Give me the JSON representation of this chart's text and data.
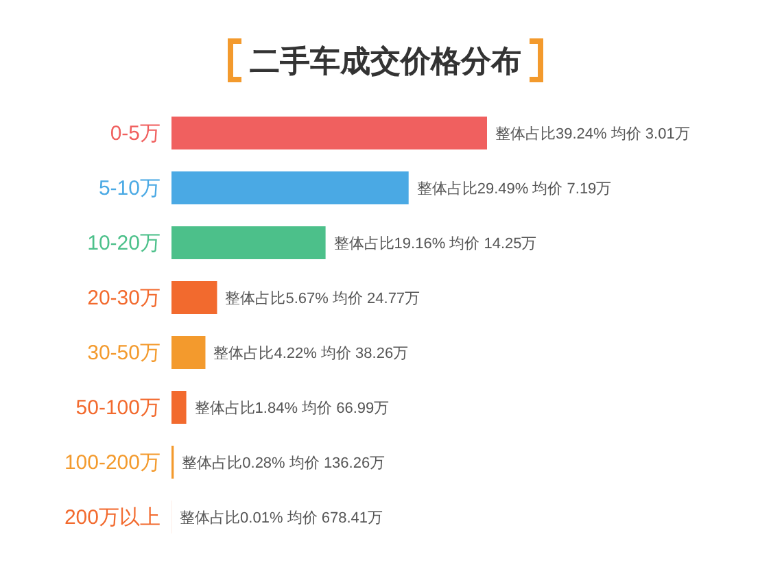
{
  "chart_data": {
    "type": "bar",
    "orientation": "horizontal",
    "title": "二手车成交价格分布",
    "categories": [
      "0-5万",
      "5-10万",
      "10-20万",
      "20-30万",
      "30-50万",
      "50-100万",
      "100-200万",
      "200万以上"
    ],
    "values": [
      39.24,
      29.49,
      19.16,
      5.67,
      4.22,
      1.84,
      0.28,
      0.01
    ],
    "value_labels": [
      "整体占比39.24% 均价 3.01万",
      "整体占比29.49% 均价 7.19万",
      "整体占比19.16% 均价 14.25万",
      "整体占比5.67% 均价 24.77万",
      "整体占比4.22% 均价 38.26万",
      "整体占比1.84% 均价 66.99万",
      "整体占比0.28% 均价 136.26万",
      "整体占比0.01% 均价 678.41万"
    ],
    "colors": [
      "#f0605f",
      "#4aa9e4",
      "#4cc08a",
      "#f26a2e",
      "#f39a2d",
      "#f26a2e",
      "#f39a2d",
      "#f26a2e"
    ]
  }
}
